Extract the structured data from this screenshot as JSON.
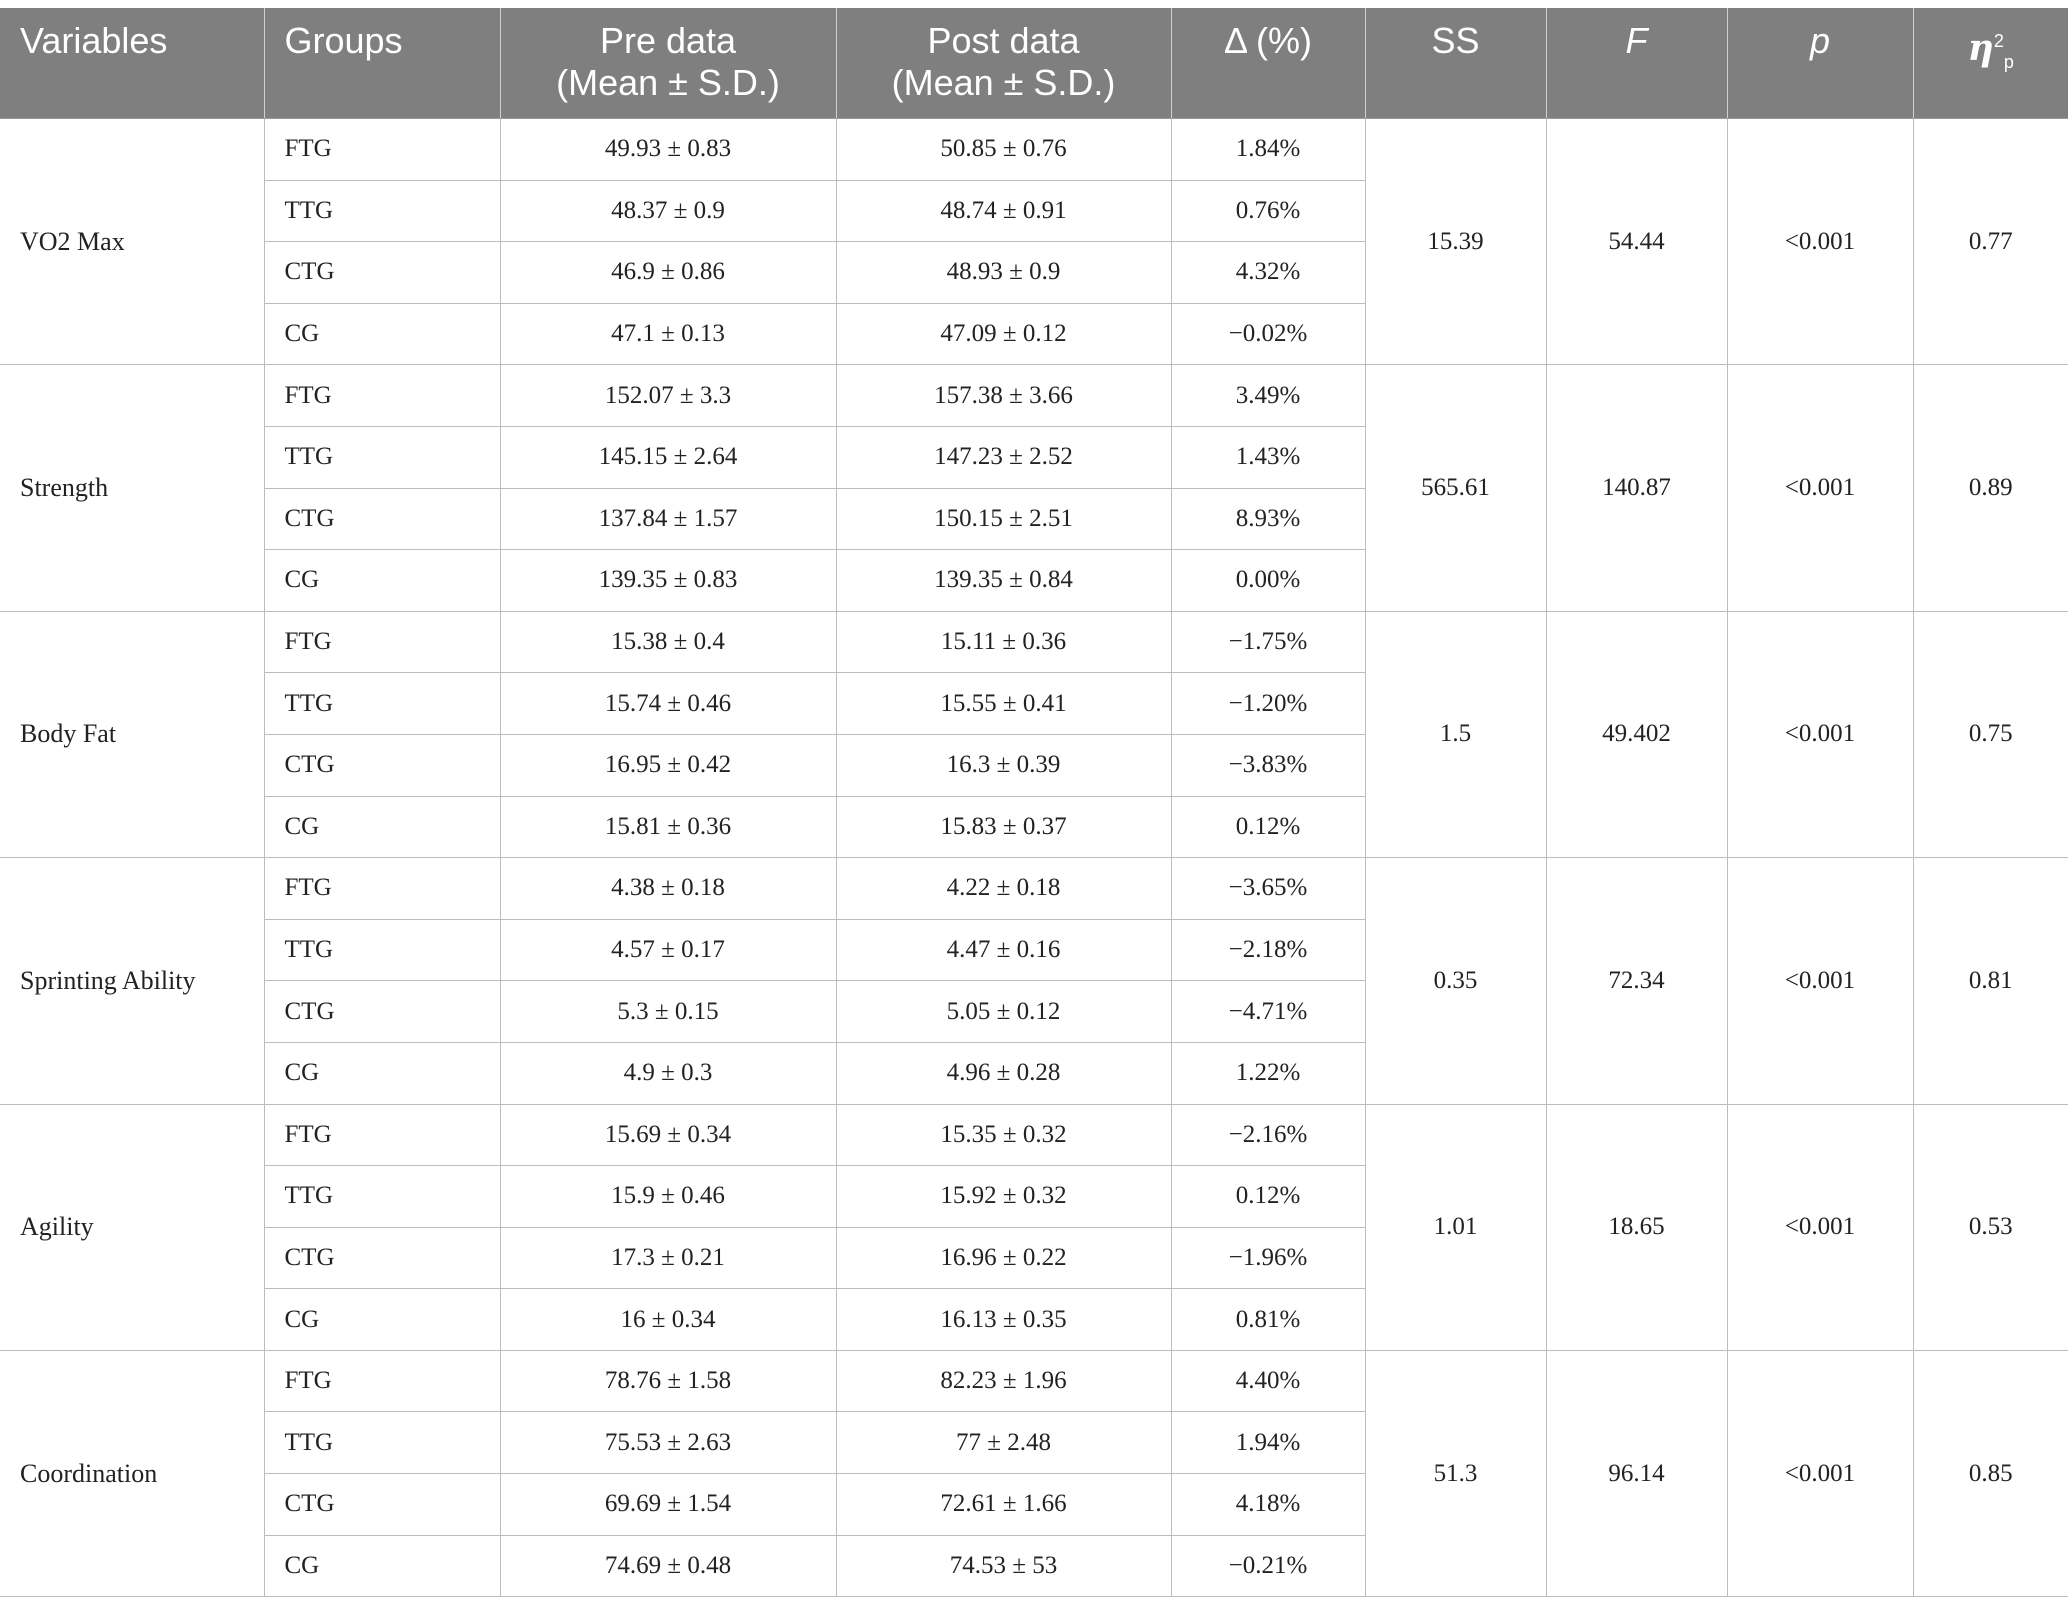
{
  "header": {
    "variables": "Variables",
    "groups": "Groups",
    "pre_line1": "Pre data",
    "pre_line2": "(Mean ± S.D.)",
    "post_line1": "Post data",
    "post_line2": "(Mean ± S.D.)",
    "delta": "Δ (%)",
    "ss": "SS",
    "f": "F",
    "p": "p",
    "eta_symbol": "η",
    "eta_sup": "2",
    "eta_sub": "p"
  },
  "rows": [
    {
      "variable": "VO2 Max",
      "ss": "15.39",
      "f": "54.44",
      "p": "<0.001",
      "eta": "0.77",
      "groups": [
        {
          "group": "FTG",
          "pre": "49.93 ± 0.83",
          "post": "50.85 ± 0.76",
          "delta": "1.84%"
        },
        {
          "group": "TTG",
          "pre": "48.37 ± 0.9",
          "post": "48.74 ± 0.91",
          "delta": "0.76%"
        },
        {
          "group": "CTG",
          "pre": "46.9 ± 0.86",
          "post": "48.93 ± 0.9",
          "delta": "4.32%"
        },
        {
          "group": "CG",
          "pre": "47.1 ± 0.13",
          "post": "47.09 ± 0.12",
          "delta": "−0.02%"
        }
      ]
    },
    {
      "variable": "Strength",
      "ss": "565.61",
      "f": "140.87",
      "p": "<0.001",
      "eta": "0.89",
      "groups": [
        {
          "group": "FTG",
          "pre": "152.07 ± 3.3",
          "post": "157.38 ± 3.66",
          "delta": "3.49%"
        },
        {
          "group": "TTG",
          "pre": "145.15 ± 2.64",
          "post": "147.23 ± 2.52",
          "delta": "1.43%"
        },
        {
          "group": "CTG",
          "pre": "137.84 ± 1.57",
          "post": "150.15 ± 2.51",
          "delta": "8.93%"
        },
        {
          "group": "CG",
          "pre": "139.35 ± 0.83",
          "post": "139.35 ± 0.84",
          "delta": "0.00%"
        }
      ]
    },
    {
      "variable": "Body Fat",
      "ss": "1.5",
      "f": "49.402",
      "p": "<0.001",
      "eta": "0.75",
      "groups": [
        {
          "group": "FTG",
          "pre": "15.38 ± 0.4",
          "post": "15.11 ± 0.36",
          "delta": "−1.75%"
        },
        {
          "group": "TTG",
          "pre": "15.74 ± 0.46",
          "post": "15.55 ± 0.41",
          "delta": "−1.20%"
        },
        {
          "group": "CTG",
          "pre": "16.95 ± 0.42",
          "post": "16.3 ± 0.39",
          "delta": "−3.83%"
        },
        {
          "group": "CG",
          "pre": "15.81 ± 0.36",
          "post": "15.83 ± 0.37",
          "delta": "0.12%"
        }
      ]
    },
    {
      "variable": "Sprinting Ability",
      "ss": "0.35",
      "f": "72.34",
      "p": "<0.001",
      "eta": "0.81",
      "groups": [
        {
          "group": "FTG",
          "pre": "4.38 ± 0.18",
          "post": "4.22 ± 0.18",
          "delta": "−3.65%"
        },
        {
          "group": "TTG",
          "pre": "4.57 ± 0.17",
          "post": "4.47 ± 0.16",
          "delta": "−2.18%"
        },
        {
          "group": "CTG",
          "pre": "5.3 ± 0.15",
          "post": "5.05 ± 0.12",
          "delta": "−4.71%"
        },
        {
          "group": "CG",
          "pre": "4.9 ± 0.3",
          "post": "4.96 ± 0.28",
          "delta": "1.22%"
        }
      ]
    },
    {
      "variable": "Agility",
      "ss": "1.01",
      "f": "18.65",
      "p": "<0.001",
      "eta": "0.53",
      "groups": [
        {
          "group": "FTG",
          "pre": "15.69 ± 0.34",
          "post": "15.35 ± 0.32",
          "delta": "−2.16%"
        },
        {
          "group": "TTG",
          "pre": "15.9 ± 0.46",
          "post": "15.92 ± 0.32",
          "delta": "0.12%"
        },
        {
          "group": "CTG",
          "pre": "17.3 ± 0.21",
          "post": "16.96 ± 0.22",
          "delta": "−1.96%"
        },
        {
          "group": "CG",
          "pre": "16 ± 0.34",
          "post": "16.13 ± 0.35",
          "delta": "0.81%"
        }
      ]
    },
    {
      "variable": "Coordination",
      "ss": "51.3",
      "f": "96.14",
      "p": "<0.001",
      "eta": "0.85",
      "groups": [
        {
          "group": "FTG",
          "pre": "78.76 ± 1.58",
          "post": "82.23 ± 1.96",
          "delta": "4.40%"
        },
        {
          "group": "TTG",
          "pre": "75.53 ± 2.63",
          "post": "77 ± 2.48",
          "delta": "1.94%"
        },
        {
          "group": "CTG",
          "pre": "69.69 ± 1.54",
          "post": "72.61 ± 1.66",
          "delta": "4.18%"
        },
        {
          "group": "CG",
          "pre": "74.69 ± 0.48",
          "post": "74.53 ± 53",
          "delta": "−0.21%"
        }
      ]
    }
  ]
}
